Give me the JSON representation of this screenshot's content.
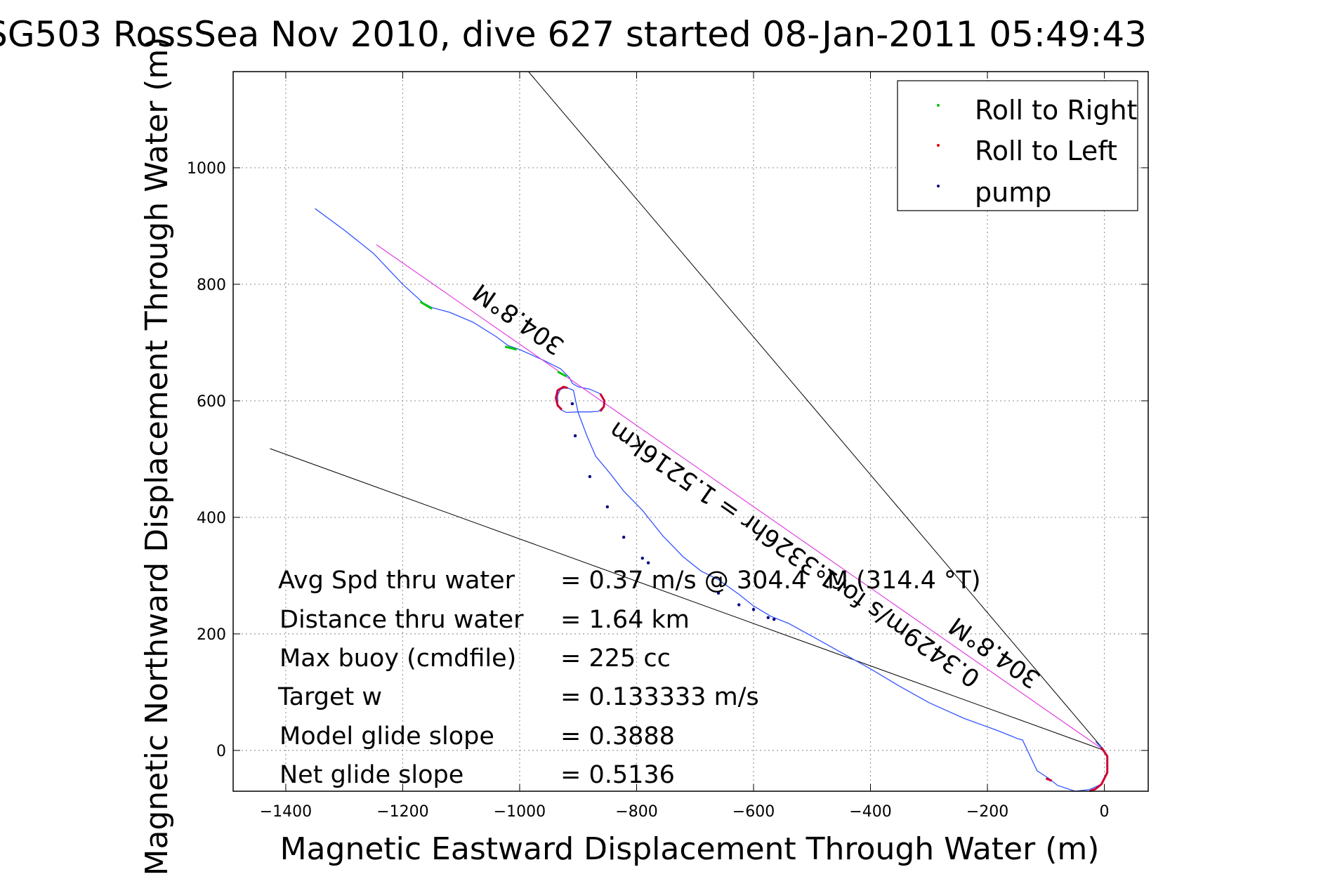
{
  "chart_data": {
    "type": "line",
    "title": "SG503 RossSea Nov 2010, dive 627 started 08-Jan-2011 05:49:43",
    "xlabel": "Magnetic Eastward Displacement Through Water (m)",
    "ylabel": "Magnetic Northward Displacement Through Water (m)",
    "xlim": [
      -1490,
      75
    ],
    "ylim": [
      -70,
      1165
    ],
    "xticks": [
      -1400,
      -1200,
      -1000,
      -800,
      -600,
      -400,
      -200,
      0
    ],
    "yticks": [
      0,
      200,
      400,
      600,
      800,
      1000
    ],
    "grid": true,
    "legend_position": "top-right",
    "legend": [
      {
        "label": "Roll to Right",
        "color": "#00c800"
      },
      {
        "label": "Roll to Left",
        "color": "#e00000"
      },
      {
        "label": "pump",
        "color": "#000080"
      }
    ],
    "colors": {
      "track": "#3355ff",
      "heading_line": "#e040e0",
      "bounds": "#000000",
      "roll_left": "#cc0033",
      "roll_right": "#00c800",
      "pump": "#000080"
    },
    "series": [
      {
        "name": "",
        "x": [
          -1350,
          -1300,
          -1250,
          -1200,
          -1165,
          -1150,
          -1120,
          -1080,
          -1040,
          -1020,
          -1000,
          -960,
          -930,
          -915,
          -910,
          -900,
          -880,
          -862,
          -855,
          -857,
          -865,
          -880,
          -900,
          -920,
          -930,
          -935,
          -935,
          -930,
          -920,
          -908,
          -900,
          -885,
          -870,
          -845,
          -822,
          -790,
          -755,
          -720,
          -690,
          -660,
          -625,
          -600,
          -570,
          -540,
          -500,
          -450,
          -400,
          -350,
          -300,
          -240,
          -185,
          -160,
          -148,
          -140,
          -115,
          -95,
          -80,
          -50,
          -25,
          -5,
          5,
          5,
          -5,
          -15
        ],
        "y": [
          930,
          893,
          853,
          800,
          768,
          760,
          752,
          735,
          710,
          695,
          688,
          670,
          655,
          640,
          630,
          624,
          620,
          612,
          598,
          590,
          582,
          581,
          581,
          580,
          585,
          595,
          610,
          620,
          623,
          618,
          580,
          540,
          505,
          475,
          445,
          412,
          368,
          332,
          308,
          293,
          268,
          248,
          230,
          218,
          196,
          168,
          140,
          110,
          82,
          55,
          35,
          25,
          20,
          18,
          -35,
          -48,
          -60,
          -70,
          -67,
          -58,
          -38,
          -10,
          5,
          15
        ]
      },
      {
        "name": "",
        "x": [
          -1245,
          0
        ],
        "y": [
          868,
          0
        ]
      }
    ],
    "bounds_lines": [
      {
        "x": [
          -1427,
          0
        ],
        "y": [
          518,
          0
        ]
      },
      {
        "x": [
          -985,
          0
        ],
        "y": [
          1165,
          0
        ]
      }
    ],
    "pump_points": {
      "x": [
        -910,
        -905,
        -880,
        -850,
        -822,
        -790,
        -780,
        -660,
        -625,
        -600,
        -575,
        -565
      ],
      "y": [
        595,
        540,
        470,
        418,
        366,
        330,
        322,
        270,
        250,
        242,
        228,
        225
      ]
    },
    "roll_segments": {
      "right": [
        {
          "x": [
            -1170,
            -1150
          ],
          "y": [
            770,
            758
          ]
        },
        {
          "x": [
            -1025,
            -1005
          ],
          "y": [
            693,
            688
          ]
        },
        {
          "x": [
            -935,
            -920
          ],
          "y": [
            650,
            642
          ]
        }
      ],
      "left": [
        {
          "x": [
            -918,
            -925,
            -935,
            -938,
            -935,
            -928
          ],
          "y": [
            622,
            624,
            618,
            605,
            592,
            585
          ]
        },
        {
          "x": [
            -862,
            -855,
            -856,
            -862
          ],
          "y": [
            612,
            600,
            590,
            582
          ]
        },
        {
          "x": [
            -100,
            -90
          ],
          "y": [
            -48,
            -52
          ]
        },
        {
          "x": [
            -5,
            5,
            5,
            -5,
            -15,
            -25
          ],
          "y": [
            5,
            -10,
            -38,
            -58,
            -66,
            -70
          ]
        }
      ]
    },
    "annotations": [
      {
        "text": "304.8°M"
      },
      {
        "text": "0.3429m/s for1.3326hr = 1.5216km"
      },
      {
        "text": "304.8°M"
      }
    ],
    "stats": [
      {
        "label": "Avg Spd thru water",
        "value": "=  0.37 m/s @ 304.4 °M (314.4 °T)"
      },
      {
        "label": "Distance thru water",
        "value": "=  1.64 km"
      },
      {
        "label": "Max buoy (cmdfile)",
        "value": "= 225 cc"
      },
      {
        "label": "Target w",
        "value": "= 0.133333 m/s"
      },
      {
        "label": "Model glide slope",
        "value": "= 0.3888"
      },
      {
        "label": "Net glide slope",
        "value": "= 0.5136"
      }
    ]
  }
}
